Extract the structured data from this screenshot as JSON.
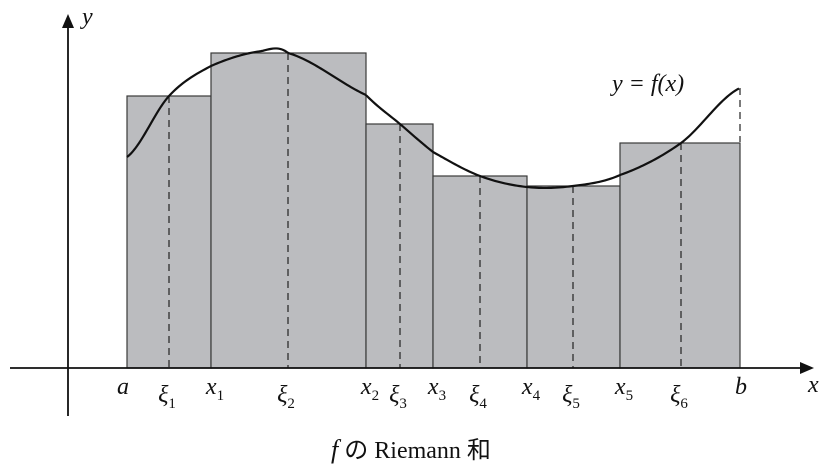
{
  "axes": {
    "x_label": "x",
    "y_label": "y"
  },
  "curve_label": "y = f(x)",
  "interval": {
    "start_label": "a",
    "end_label": "b"
  },
  "partition_points": [
    {
      "name": "x",
      "sub": "1"
    },
    {
      "name": "x",
      "sub": "2"
    },
    {
      "name": "x",
      "sub": "3"
    },
    {
      "name": "x",
      "sub": "4"
    },
    {
      "name": "x",
      "sub": "5"
    }
  ],
  "sample_points": [
    {
      "name": "ξ",
      "sub": "1"
    },
    {
      "name": "ξ",
      "sub": "2"
    },
    {
      "name": "ξ",
      "sub": "3"
    },
    {
      "name": "ξ",
      "sub": "4"
    },
    {
      "name": "ξ",
      "sub": "5"
    },
    {
      "name": "ξ",
      "sub": "6"
    }
  ],
  "caption": {
    "func": "f",
    "text": " の Riemann 和"
  },
  "colors": {
    "rect_fill": "#bbbcbf",
    "line": "#111111"
  }
}
